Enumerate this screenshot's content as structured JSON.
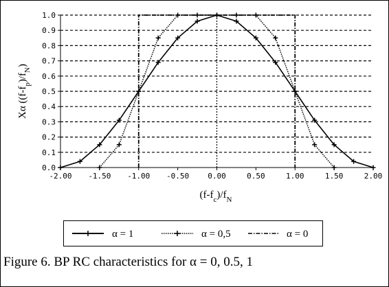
{
  "caption": "Figure 6. BP RC characteristics for α = 0, 0.5, 1",
  "chart_data": {
    "type": "line",
    "title": "",
    "xlabel": "(f-f_c)/f_N",
    "ylabel": "Xα ((f-f_p)/f_N)",
    "xlim": [
      -2.0,
      2.0
    ],
    "ylim": [
      0.0,
      1.0
    ],
    "x_ticks": [
      "-2.00",
      "-1.50",
      "-1.00",
      "-0.50",
      "0.00",
      "0.50",
      "1.00",
      "1.50",
      "2.00"
    ],
    "y_ticks": [
      "0.0",
      "0.1",
      "0.2",
      "0.3",
      "0.4",
      "0.5",
      "0.6",
      "0.7",
      "0.8",
      "0.9",
      "1.0"
    ],
    "grid": true,
    "legend_position": "bottom",
    "series": [
      {
        "name": "α = 1",
        "style": "solid",
        "marker": "plus",
        "x": [
          -2.0,
          -1.75,
          -1.5,
          -1.25,
          -1.0,
          -0.75,
          -0.5,
          -0.25,
          0.0,
          0.25,
          0.5,
          0.75,
          1.0,
          1.25,
          1.5,
          1.75,
          2.0
        ],
        "y": [
          0.0,
          0.04,
          0.15,
          0.31,
          0.5,
          0.69,
          0.85,
          0.96,
          1.0,
          0.96,
          0.85,
          0.69,
          0.5,
          0.31,
          0.15,
          0.04,
          0.0
        ]
      },
      {
        "name": "α = 0,5",
        "style": "dotted",
        "marker": "plus",
        "x": [
          -1.5,
          -1.25,
          -1.0,
          -0.75,
          -0.5,
          -0.25,
          0.0,
          0.25,
          0.5,
          0.75,
          1.0,
          1.25,
          1.5
        ],
        "y": [
          0.0,
          0.15,
          0.5,
          0.85,
          1.0,
          1.0,
          1.0,
          1.0,
          1.0,
          0.85,
          0.5,
          0.15,
          0.0
        ]
      },
      {
        "name": "α = 0",
        "style": "dashdot",
        "marker": "none",
        "x": [
          -1.0,
          -1.0,
          1.0,
          1.0
        ],
        "y": [
          0.0,
          1.0,
          1.0,
          0.0
        ]
      }
    ]
  }
}
